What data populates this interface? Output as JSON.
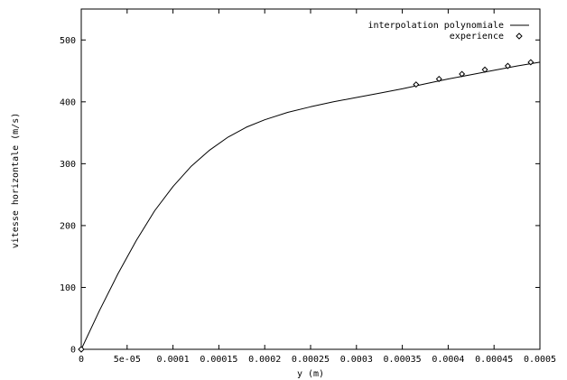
{
  "chart_data": {
    "type": "line",
    "xlabel": "y (m)",
    "ylabel": "vitesse horizontale (m/s)",
    "xlim": [
      0,
      0.0005
    ],
    "ylim": [
      0,
      550
    ],
    "grid": false,
    "legend_placement": "top-right",
    "x_ticks": [
      {
        "value": 0,
        "label": "0"
      },
      {
        "value": 5e-05,
        "label": "5e-05"
      },
      {
        "value": 0.0001,
        "label": "0.0001"
      },
      {
        "value": 0.00015,
        "label": "0.00015"
      },
      {
        "value": 0.0002,
        "label": "0.0002"
      },
      {
        "value": 0.00025,
        "label": "0.00025"
      },
      {
        "value": 0.0003,
        "label": "0.0003"
      },
      {
        "value": 0.00035,
        "label": "0.00035"
      },
      {
        "value": 0.0004,
        "label": "0.0004"
      },
      {
        "value": 0.00045,
        "label": "0.00045"
      },
      {
        "value": 0.0005,
        "label": "0.0005"
      }
    ],
    "y_ticks": [
      {
        "value": 0,
        "label": "0"
      },
      {
        "value": 100,
        "label": "100"
      },
      {
        "value": 200,
        "label": "200"
      },
      {
        "value": 300,
        "label": "300"
      },
      {
        "value": 400,
        "label": "400"
      },
      {
        "value": 500,
        "label": "500"
      }
    ],
    "series": [
      {
        "name": "interpolation polynomiale",
        "kind": "line",
        "color": "#000000",
        "x": [
          0,
          2e-05,
          4e-05,
          6e-05,
          8e-05,
          0.0001,
          0.00012,
          0.00014,
          0.00016,
          0.00018,
          0.0002,
          0.000225,
          0.00025,
          0.000275,
          0.0003,
          0.000325,
          0.00035,
          0.000375,
          0.0004,
          0.000425,
          0.00045,
          0.000475,
          0.0005
        ],
        "y": [
          0,
          63,
          122,
          176,
          224,
          263,
          296,
          322,
          343,
          359,
          371,
          383,
          392,
          400,
          407,
          414,
          421,
          429,
          437,
          444,
          451,
          458,
          464
        ]
      },
      {
        "name": "experience",
        "kind": "markers",
        "marker": "diamond",
        "color": "#000000",
        "x": [
          0.000365,
          0.00039,
          0.000415,
          0.00044,
          0.000465,
          0.00049
        ],
        "y": [
          428,
          437,
          445,
          452,
          458,
          464
        ]
      }
    ]
  }
}
